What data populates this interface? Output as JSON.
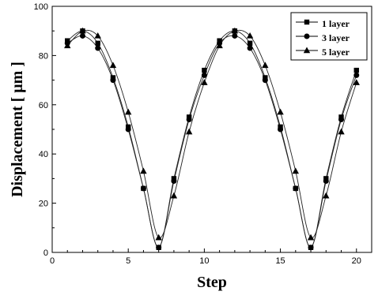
{
  "chart_data": {
    "type": "line",
    "title": "",
    "xlabel": "Step",
    "ylabel": "Displacement [ μm ]",
    "xlim": [
      0,
      21
    ],
    "ylim": [
      0,
      100
    ],
    "xticks": [
      "0",
      "5",
      "10",
      "15",
      "20"
    ],
    "yticks": [
      "0",
      "20",
      "40",
      "60",
      "80",
      "100"
    ],
    "grid": false,
    "legend_position": "top-right",
    "x": [
      1,
      2,
      3,
      4,
      5,
      6,
      7,
      8,
      9,
      10,
      11,
      12,
      13,
      14,
      15,
      16,
      17,
      18,
      19,
      20
    ],
    "series": [
      {
        "name": "1 layer",
        "marker": "square",
        "values": [
          86,
          90,
          85,
          71,
          51,
          26,
          2,
          30,
          55,
          74,
          86,
          90,
          85,
          71,
          51,
          26,
          2,
          30,
          55,
          74
        ]
      },
      {
        "name": "3 layer",
        "marker": "circle",
        "values": [
          85,
          88,
          83,
          70,
          50,
          26,
          2,
          29,
          54,
          72,
          85,
          88,
          83,
          70,
          50,
          26,
          2,
          29,
          54,
          72
        ]
      },
      {
        "name": "5 layer",
        "marker": "triangle",
        "values": [
          84,
          90,
          88,
          76,
          57,
          33,
          6,
          23,
          49,
          69,
          84,
          90,
          88,
          76,
          57,
          33,
          6,
          23,
          49,
          69
        ]
      }
    ]
  }
}
